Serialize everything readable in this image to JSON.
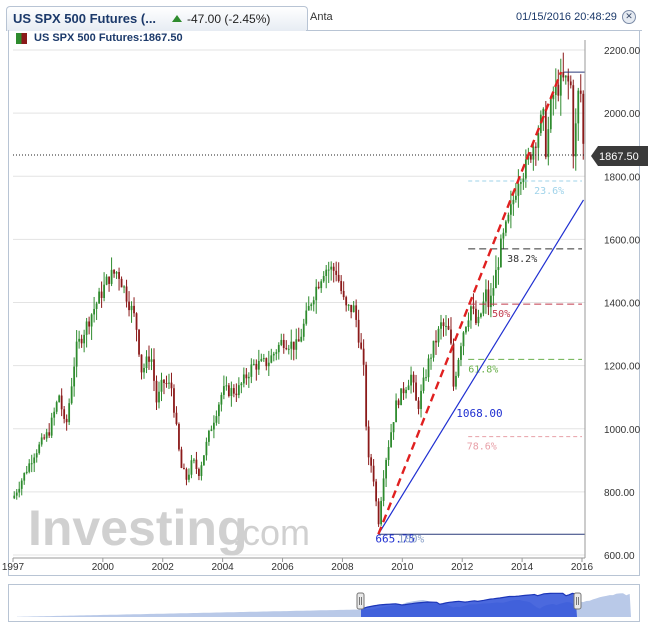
{
  "header": {
    "title": "US SPX 500 Futures (...",
    "change": "-47.00 (-2.45%)",
    "extra": "Anta",
    "datetime": "01/15/2016 20:48:29",
    "close_symbol": "✕"
  },
  "legend": {
    "label": "US SPX 500 Futures:1867.50"
  },
  "last_price_label": "1867.50",
  "watermark": {
    "brand": "Investing",
    "suffix": ".com"
  },
  "colors": {
    "up": "#2e8b2e",
    "down": "#8b1a1a",
    "trend_blue": "#1f2fd1",
    "trend_red": "#e02020",
    "nav_fill": "#b9c9e8",
    "nav_line": "#2b4fd8"
  },
  "chart_data": {
    "type": "candlestick",
    "xlim": [
      1997.0,
      2016.1
    ],
    "ylim": [
      600,
      2200
    ],
    "xticks": [
      1997,
      2000,
      2002,
      2004,
      2006,
      2008,
      2010,
      2012,
      2014,
      2016
    ],
    "yticks": [
      600,
      800,
      1000,
      1200,
      1400,
      1600,
      1800,
      2000,
      2200
    ],
    "ytick_labels": [
      "600.00",
      "800.00",
      "1000.00",
      "1200.00",
      "1400.00",
      "1600.00",
      "1800.00",
      "2000.00",
      "2200.00"
    ],
    "last_price": 1867.5,
    "anchors": [
      [
        1997.0,
        780
      ],
      [
        1997.3,
        840
      ],
      [
        1997.7,
        920
      ],
      [
        1998.2,
        990
      ],
      [
        1998.55,
        1110
      ],
      [
        1998.75,
        990
      ],
      [
        1999.1,
        1250
      ],
      [
        1999.6,
        1360
      ],
      [
        2000.2,
        1480
      ],
      [
        2000.5,
        1500
      ],
      [
        2000.8,
        1420
      ],
      [
        2001.1,
        1340
      ],
      [
        2001.3,
        1180
      ],
      [
        2001.6,
        1240
      ],
      [
        2001.8,
        1080
      ],
      [
        2002.0,
        1150
      ],
      [
        2002.3,
        1130
      ],
      [
        2002.6,
        880
      ],
      [
        2002.8,
        840
      ],
      [
        2003.0,
        900
      ],
      [
        2003.2,
        860
      ],
      [
        2003.6,
        1000
      ],
      [
        2004.0,
        1120
      ],
      [
        2004.5,
        1120
      ],
      [
        2005.0,
        1200
      ],
      [
        2005.5,
        1210
      ],
      [
        2006.0,
        1280
      ],
      [
        2006.5,
        1260
      ],
      [
        2007.0,
        1420
      ],
      [
        2007.4,
        1510
      ],
      [
        2007.8,
        1500
      ],
      [
        2008.1,
        1380
      ],
      [
        2008.4,
        1380
      ],
      [
        2008.7,
        1200
      ],
      [
        2008.85,
        900
      ],
      [
        2009.0,
        880
      ],
      [
        2009.2,
        700
      ],
      [
        2009.4,
        880
      ],
      [
        2009.8,
        1080
      ],
      [
        2010.3,
        1170
      ],
      [
        2010.5,
        1060
      ],
      [
        2010.9,
        1220
      ],
      [
        2011.3,
        1330
      ],
      [
        2011.6,
        1300
      ],
      [
        2011.7,
        1130
      ],
      [
        2012.0,
        1300
      ],
      [
        2012.3,
        1390
      ],
      [
        2012.5,
        1320
      ],
      [
        2012.8,
        1430
      ],
      [
        2012.9,
        1380
      ],
      [
        2013.3,
        1580
      ],
      [
        2013.6,
        1680
      ],
      [
        2013.9,
        1810
      ],
      [
        2014.1,
        1820
      ],
      [
        2014.3,
        1880
      ],
      [
        2014.7,
        1990
      ],
      [
        2014.8,
        1880
      ],
      [
        2015.0,
        2050
      ],
      [
        2015.3,
        2100
      ],
      [
        2015.5,
        2100
      ],
      [
        2015.65,
        2080
      ],
      [
        2015.7,
        1880
      ],
      [
        2015.8,
        1960
      ],
      [
        2015.9,
        2090
      ],
      [
        2016.0,
        2040
      ],
      [
        2016.05,
        1870
      ]
    ],
    "max_line": {
      "x1": 2015.4,
      "x2": 2016.1,
      "y": 2130
    },
    "min_line": {
      "x1": 2009.2,
      "x2": 2016.1,
      "y": 665.75
    },
    "red_dashed_trend": {
      "x1": 2009.2,
      "y1": 665.75,
      "x2": 2015.3,
      "y2": 2130
    },
    "blue_trend": {
      "x1": 2009.2,
      "y1": 665.75,
      "x2": 2016.05,
      "y2": 1725
    },
    "fib_levels": [
      {
        "label": "23.6%",
        "value": 1785,
        "color": "#9fd3ea",
        "dash": "4,3",
        "label_x": 2014.4
      },
      {
        "label": "38.2%",
        "value": 1570,
        "color": "#333333",
        "dash": "7,4",
        "label_x": 2013.5
      },
      {
        "label": "50%",
        "value": 1395,
        "color": "#c0394b",
        "dash": "7,4",
        "label_x": 2013.0
      },
      {
        "label": "61.8%",
        "value": 1220,
        "color": "#6ab04c",
        "dash": "6,4",
        "label_x": 2012.2
      },
      {
        "label": "78.6%",
        "value": 975,
        "color": "#e8a0a8",
        "dash": "4,3",
        "label_x": 2012.15
      }
    ],
    "annotations": [
      {
        "text": "1068.00",
        "x": 2011.8,
        "y": 1038,
        "color": "#1f2fd1"
      },
      {
        "text": "665.75",
        "x": 2009.1,
        "y": 640,
        "color": "#1f2fd1"
      },
      {
        "text": "100%",
        "x": 2009.85,
        "y": 640,
        "color": "#8aa0c8"
      }
    ]
  }
}
